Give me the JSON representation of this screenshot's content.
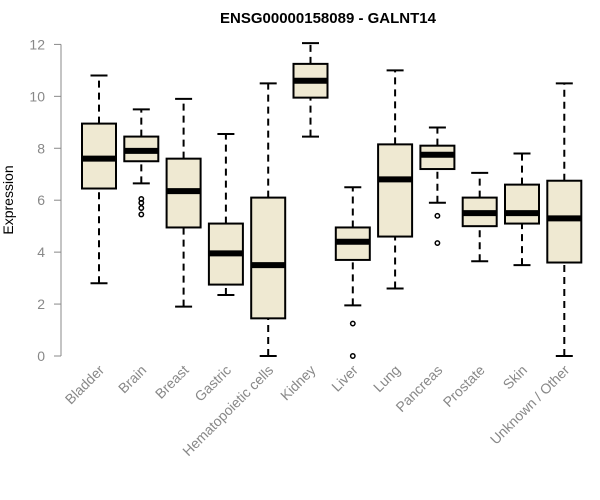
{
  "chart_data": {
    "type": "boxplot",
    "title": "ENSG00000158089 - GALNT14",
    "ylabel": "Expression",
    "xlabel": "",
    "ylim": [
      0,
      12
    ],
    "yticks": [
      0,
      2,
      4,
      6,
      8,
      10,
      12
    ],
    "colors": {
      "box_fill": "#efe9d2",
      "box_stroke": "#000000",
      "axis": "#888888",
      "tick_label": "#888888"
    },
    "categories": [
      "Bladder",
      "Brain",
      "Breast",
      "Gastric",
      "Hematopoietic cells",
      "Kidney",
      "Liver",
      "Lung",
      "Pancreas",
      "Prostate",
      "Skin",
      "Unknown / Other"
    ],
    "boxes": [
      {
        "category": "Bladder",
        "min": 2.8,
        "q1": 6.45,
        "median": 7.6,
        "q3": 8.95,
        "max": 10.8,
        "outliers": []
      },
      {
        "category": "Brain",
        "min": 6.65,
        "q1": 7.5,
        "median": 7.9,
        "q3": 8.45,
        "max": 9.5,
        "outliers": [
          6.05,
          5.9,
          5.7,
          5.45
        ]
      },
      {
        "category": "Breast",
        "min": 1.9,
        "q1": 4.95,
        "median": 6.35,
        "q3": 7.6,
        "max": 9.9,
        "outliers": []
      },
      {
        "category": "Gastric",
        "min": 2.35,
        "q1": 2.75,
        "median": 3.95,
        "q3": 5.1,
        "max": 8.55,
        "outliers": []
      },
      {
        "category": "Hematopoietic cells",
        "min": 0.0,
        "q1": 1.45,
        "median": 3.5,
        "q3": 6.1,
        "max": 10.5,
        "outliers": []
      },
      {
        "category": "Kidney",
        "min": 8.45,
        "q1": 9.95,
        "median": 10.6,
        "q3": 11.25,
        "max": 12.05,
        "outliers": []
      },
      {
        "category": "Liver",
        "min": 1.95,
        "q1": 3.7,
        "median": 4.4,
        "q3": 4.95,
        "max": 6.5,
        "outliers": [
          1.25,
          0.0
        ]
      },
      {
        "category": "Lung",
        "min": 2.6,
        "q1": 4.6,
        "median": 6.8,
        "q3": 8.15,
        "max": 11.0,
        "outliers": []
      },
      {
        "category": "Pancreas",
        "min": 5.9,
        "q1": 7.2,
        "median": 7.75,
        "q3": 8.1,
        "max": 8.8,
        "outliers": [
          5.4,
          4.35
        ]
      },
      {
        "category": "Prostate",
        "min": 3.65,
        "q1": 5.0,
        "median": 5.5,
        "q3": 6.1,
        "max": 7.05,
        "outliers": []
      },
      {
        "category": "Skin",
        "min": 3.5,
        "q1": 5.1,
        "median": 5.5,
        "q3": 6.6,
        "max": 7.8,
        "outliers": []
      },
      {
        "category": "Unknown / Other",
        "min": 0.0,
        "q1": 3.6,
        "median": 5.3,
        "q3": 6.75,
        "max": 10.5,
        "outliers": []
      }
    ]
  }
}
